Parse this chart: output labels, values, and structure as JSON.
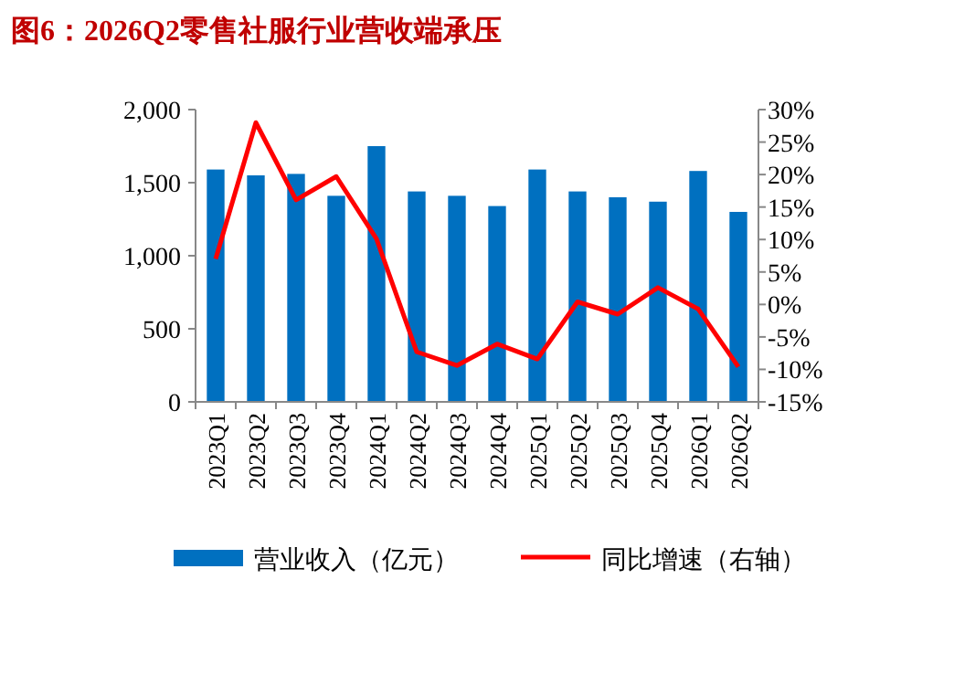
{
  "chart_data": {
    "type": "bar",
    "title": "图6：2026Q2零售社服行业营收端承压",
    "categories": [
      "2023Q1",
      "2023Q2",
      "2023Q3",
      "2023Q4",
      "2024Q1",
      "2024Q2",
      "2024Q3",
      "2024Q4",
      "2025Q1",
      "2025Q2",
      "2025Q3",
      "2025Q4",
      "2026Q1",
      "2026Q2"
    ],
    "series": [
      {
        "name": "营业收入（亿元）",
        "color": "#0070c0",
        "values": [
          1590,
          1550,
          1560,
          1410,
          1750,
          1440,
          1410,
          1340,
          1590,
          1440,
          1400,
          1370,
          1580,
          1300
        ]
      },
      {
        "name": "同比增速（右轴）",
        "color": "#ff0000",
        "type": "line",
        "axis": "y2",
        "values": [
          7.0,
          28.0,
          16.1,
          19.7,
          10.1,
          -7.3,
          -9.4,
          -6.1,
          -8.4,
          0.4,
          -1.5,
          2.6,
          -0.7,
          -9.6
        ]
      }
    ],
    "ylim": [
      0,
      2000
    ],
    "yticks": [
      0,
      {
        "value": 500,
        "label": "500"
      },
      {
        "value": 1000,
        "label": "1,000"
      },
      {
        "value": 1500,
        "label": "1,500"
      },
      {
        "value": 2000,
        "label": "2,000"
      }
    ],
    "y2lim": [
      -15,
      30
    ],
    "y2ticks": [
      {
        "value": -15,
        "label": "-15%"
      },
      {
        "value": -10,
        "label": "-10%"
      },
      {
        "value": -5,
        "label": "-5%"
      },
      {
        "value": 0,
        "label": "0%"
      },
      {
        "value": 5,
        "label": "5%"
      },
      {
        "value": 10,
        "label": "10%"
      },
      {
        "value": 15,
        "label": "15%"
      },
      {
        "value": 20,
        "label": "20%"
      },
      {
        "value": 25,
        "label": "25%"
      },
      {
        "value": 30,
        "label": "30%"
      }
    ],
    "legend": "bottom",
    "grid": false
  }
}
